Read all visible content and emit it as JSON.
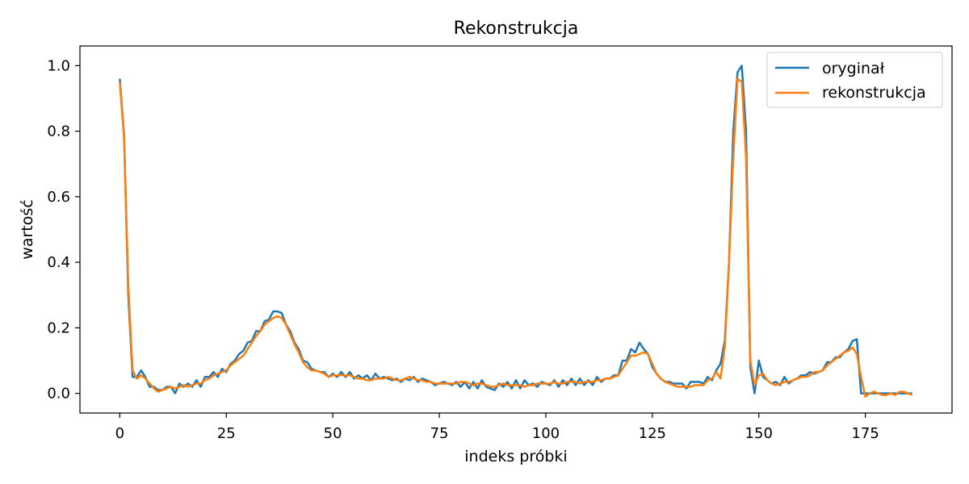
{
  "chart_data": {
    "type": "line",
    "title": "Rekonstrukcja",
    "xlabel": "indeks próbki",
    "ylabel": "wartość",
    "xlim": [
      -9.35,
      195.35
    ],
    "ylim": [
      -0.06,
      1.06
    ],
    "xticks": [
      0,
      25,
      50,
      75,
      100,
      125,
      150,
      175
    ],
    "yticks": [
      0.0,
      0.2,
      0.4,
      0.6,
      0.8,
      1.0
    ],
    "xtick_labels": [
      "0",
      "25",
      "50",
      "75",
      "100",
      "125",
      "150",
      "175"
    ],
    "ytick_labels": [
      "0.0",
      "0.2",
      "0.4",
      "0.6",
      "0.8",
      "1.0"
    ],
    "grid": false,
    "legend_position": "top-right",
    "series": [
      {
        "name": "oryginał",
        "color": "#1f77b4",
        "values": [
          0.96,
          0.79,
          0.3,
          0.05,
          0.05,
          0.07,
          0.05,
          0.02,
          0.02,
          0.01,
          0.01,
          0.02,
          0.02,
          0.0,
          0.03,
          0.02,
          0.03,
          0.02,
          0.04,
          0.02,
          0.05,
          0.05,
          0.065,
          0.05,
          0.075,
          0.065,
          0.09,
          0.1,
          0.12,
          0.13,
          0.155,
          0.16,
          0.19,
          0.19,
          0.22,
          0.225,
          0.25,
          0.25,
          0.245,
          0.21,
          0.19,
          0.155,
          0.135,
          0.1,
          0.095,
          0.075,
          0.07,
          0.065,
          0.065,
          0.05,
          0.06,
          0.05,
          0.065,
          0.05,
          0.065,
          0.045,
          0.055,
          0.045,
          0.055,
          0.04,
          0.06,
          0.045,
          0.05,
          0.045,
          0.04,
          0.045,
          0.035,
          0.045,
          0.04,
          0.05,
          0.035,
          0.045,
          0.04,
          0.035,
          0.025,
          0.03,
          0.035,
          0.03,
          0.025,
          0.035,
          0.02,
          0.035,
          0.015,
          0.035,
          0.015,
          0.04,
          0.02,
          0.015,
          0.01,
          0.03,
          0.02,
          0.035,
          0.015,
          0.04,
          0.015,
          0.04,
          0.025,
          0.03,
          0.02,
          0.035,
          0.03,
          0.025,
          0.04,
          0.02,
          0.04,
          0.025,
          0.045,
          0.025,
          0.045,
          0.025,
          0.04,
          0.025,
          0.05,
          0.035,
          0.045,
          0.045,
          0.055,
          0.055,
          0.1,
          0.1,
          0.135,
          0.125,
          0.155,
          0.135,
          0.12,
          0.08,
          0.06,
          0.045,
          0.035,
          0.035,
          0.03,
          0.03,
          0.03,
          0.015,
          0.035,
          0.035,
          0.035,
          0.03,
          0.05,
          0.04,
          0.07,
          0.09,
          0.16,
          0.4,
          0.8,
          0.98,
          1.0,
          0.8,
          0.08,
          0.0,
          0.1,
          0.05,
          0.04,
          0.03,
          0.035,
          0.025,
          0.05,
          0.03,
          0.04,
          0.045,
          0.055,
          0.055,
          0.065,
          0.06,
          0.065,
          0.07,
          0.095,
          0.095,
          0.11,
          0.11,
          0.125,
          0.135,
          0.16,
          0.165,
          0.0,
          0.0,
          0.0,
          0.0,
          0.0,
          0.0,
          0.0,
          0.0,
          0.0,
          0.0,
          0.0,
          0.0,
          0.0
        ]
      },
      {
        "name": "rekonstrukcja",
        "color": "#ff7f0e",
        "values": [
          0.95,
          0.78,
          0.33,
          0.07,
          0.045,
          0.055,
          0.045,
          0.03,
          0.015,
          0.005,
          0.01,
          0.015,
          0.02,
          0.015,
          0.02,
          0.025,
          0.02,
          0.025,
          0.03,
          0.03,
          0.04,
          0.045,
          0.055,
          0.06,
          0.065,
          0.07,
          0.085,
          0.095,
          0.105,
          0.115,
          0.135,
          0.155,
          0.175,
          0.19,
          0.21,
          0.22,
          0.23,
          0.235,
          0.23,
          0.21,
          0.18,
          0.15,
          0.125,
          0.095,
          0.08,
          0.07,
          0.07,
          0.065,
          0.06,
          0.05,
          0.055,
          0.055,
          0.055,
          0.055,
          0.055,
          0.05,
          0.045,
          0.045,
          0.04,
          0.04,
          0.045,
          0.045,
          0.045,
          0.05,
          0.045,
          0.04,
          0.04,
          0.045,
          0.05,
          0.045,
          0.04,
          0.04,
          0.035,
          0.035,
          0.03,
          0.03,
          0.03,
          0.03,
          0.03,
          0.03,
          0.035,
          0.035,
          0.03,
          0.025,
          0.03,
          0.03,
          0.025,
          0.02,
          0.02,
          0.025,
          0.03,
          0.025,
          0.025,
          0.025,
          0.025,
          0.02,
          0.025,
          0.025,
          0.03,
          0.03,
          0.03,
          0.03,
          0.035,
          0.03,
          0.03,
          0.035,
          0.035,
          0.035,
          0.03,
          0.035,
          0.035,
          0.035,
          0.04,
          0.04,
          0.045,
          0.045,
          0.05,
          0.055,
          0.075,
          0.095,
          0.115,
          0.115,
          0.12,
          0.125,
          0.12,
          0.09,
          0.06,
          0.045,
          0.035,
          0.03,
          0.025,
          0.02,
          0.02,
          0.02,
          0.02,
          0.025,
          0.025,
          0.025,
          0.04,
          0.045,
          0.065,
          0.045,
          0.14,
          0.4,
          0.72,
          0.96,
          0.95,
          0.72,
          0.1,
          0.025,
          0.055,
          0.06,
          0.04,
          0.03,
          0.025,
          0.03,
          0.035,
          0.035,
          0.04,
          0.045,
          0.05,
          0.05,
          0.055,
          0.065,
          0.065,
          0.07,
          0.085,
          0.095,
          0.105,
          0.115,
          0.125,
          0.13,
          0.14,
          0.12,
          0.05,
          -0.01,
          0.0,
          0.005,
          0.0,
          -0.005,
          -0.005,
          0.0,
          -0.005,
          0.005,
          0.005,
          0.0,
          -0.005
        ]
      }
    ]
  }
}
